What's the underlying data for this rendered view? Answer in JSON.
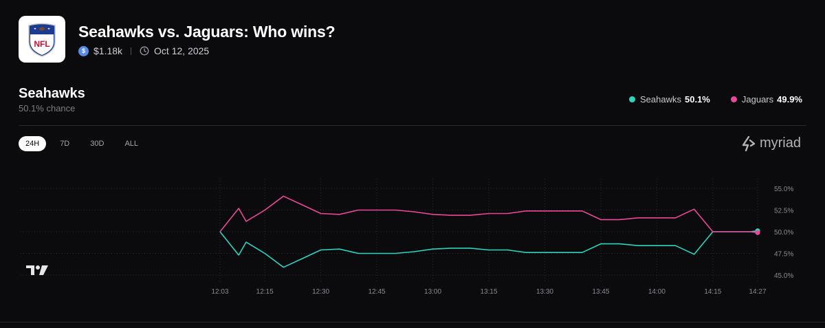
{
  "header": {
    "title": "Seahawks vs. Jaguars: Who wins?",
    "volume": "$1.18k",
    "date": "Oct 12, 2025",
    "logo_text": "NFL"
  },
  "outcome": {
    "name": "Seahawks",
    "chance": "50.1% chance"
  },
  "legend": [
    {
      "name": "Seahawks",
      "value": "50.1%",
      "color": "#2dd4bf"
    },
    {
      "name": "Jaguars",
      "value": "49.9%",
      "color": "#ec4899"
    }
  ],
  "ranges": [
    "24H",
    "7D",
    "30D",
    "ALL"
  ],
  "active_range": "24H",
  "brand": "myriad",
  "chart_data": {
    "type": "line",
    "x": [
      "12:03",
      "12:08",
      "12:10",
      "12:15",
      "12:20",
      "12:25",
      "12:30",
      "12:35",
      "12:40",
      "12:45",
      "12:50",
      "12:55",
      "13:00",
      "13:05",
      "13:10",
      "13:15",
      "13:20",
      "13:25",
      "13:30",
      "13:35",
      "13:40",
      "13:45",
      "13:50",
      "13:55",
      "14:00",
      "14:05",
      "14:10",
      "14:15",
      "14:20",
      "14:25",
      "14:27"
    ],
    "x_ticks": [
      "12:03",
      "12:15",
      "12:30",
      "12:45",
      "13:00",
      "13:15",
      "13:30",
      "13:45",
      "14:00",
      "14:15",
      "14:27"
    ],
    "y_ticks": [
      "55.0%",
      "52.5%",
      "50.0%",
      "47.5%",
      "45.0%"
    ],
    "ylim": [
      45,
      55
    ],
    "series": [
      {
        "name": "Seahawks",
        "color": "#2dd4bf",
        "values": [
          50.0,
          47.3,
          48.8,
          47.5,
          45.9,
          46.9,
          47.9,
          48.0,
          47.5,
          47.5,
          47.5,
          47.7,
          48.0,
          48.1,
          48.1,
          47.9,
          47.9,
          47.6,
          47.6,
          47.6,
          47.6,
          48.6,
          48.6,
          48.4,
          48.4,
          48.4,
          47.4,
          50.0,
          50.0,
          50.0,
          50.1
        ]
      },
      {
        "name": "Jaguars",
        "color": "#ec4899",
        "values": [
          50.0,
          52.7,
          51.2,
          52.5,
          54.1,
          53.1,
          52.1,
          52.0,
          52.5,
          52.5,
          52.5,
          52.3,
          52.0,
          51.9,
          51.9,
          52.1,
          52.1,
          52.4,
          52.4,
          52.4,
          52.4,
          51.4,
          51.4,
          51.6,
          51.6,
          51.6,
          52.6,
          50.0,
          50.0,
          50.0,
          49.9
        ]
      }
    ]
  }
}
